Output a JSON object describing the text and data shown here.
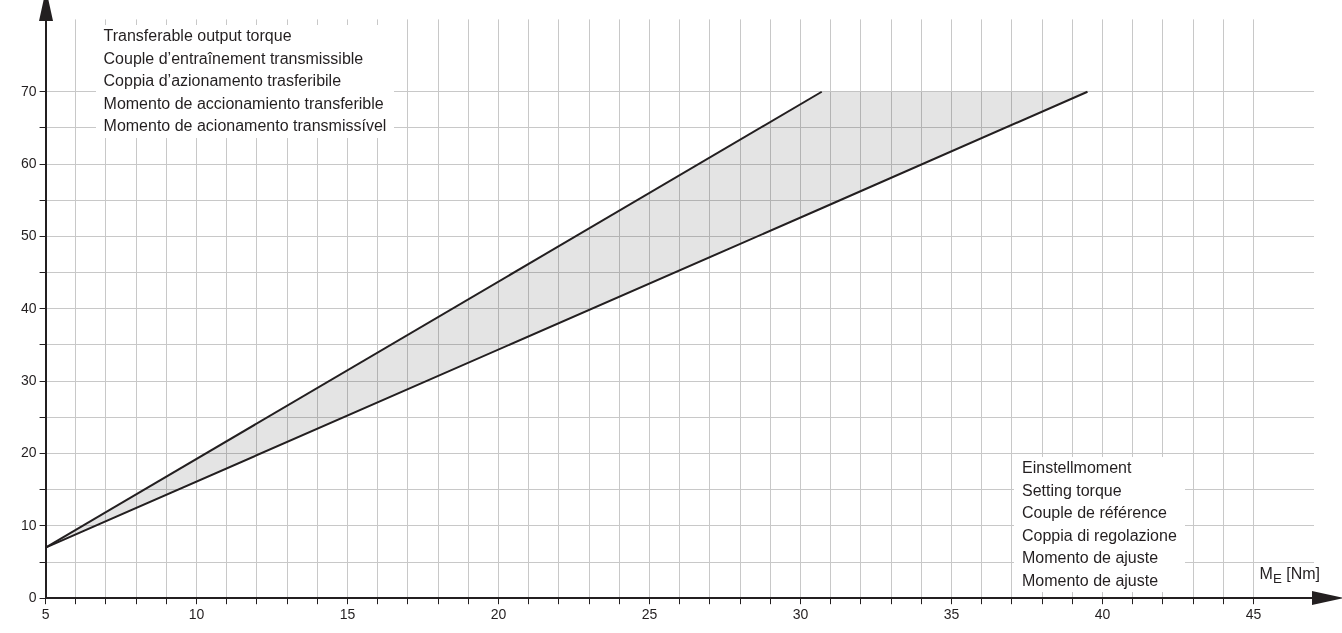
{
  "chart_data": {
    "type": "line",
    "ylabel": "Transferable output torque\nCouple d’entraînement transmissible\nCoppia d’azionamento trasferibile\nMomento de accionamiento transferible\nMomento de acionamento transmissível",
    "xlabel": "M$_{E}$ [Nm]",
    "annotations": [
      "Einstellmoment\nSetting torque\nCouple de référence\nCoppia di regolazione\nMomento de ajuste\nMomento de ajuste"
    ],
    "series": [
      {
        "color": "#231f20",
        "x": [
          5,
          30.7
        ],
        "values": [
          7,
          70
        ]
      },
      {
        "color": "#231f20",
        "x": [
          5,
          30.7,
          39.5
        ],
        "values": [
          7,
          53.9,
          70
        ],
        "lower": [
          7,
          53.9,
          70
        ],
        "upper": [
          7,
          70,
          70
        ]
      }
    ],
    "xlim": [
      5,
      47
    ],
    "ylim": [
      0,
      80
    ],
    "xticks": [
      5,
      {
        "value": 6,
        "label": null
      },
      {
        "value": 7,
        "label": null
      },
      {
        "value": 8,
        "label": null
      },
      {
        "value": 9,
        "label": null
      },
      10,
      {
        "value": 11,
        "label": null
      },
      {
        "value": 12,
        "label": null
      },
      {
        "value": 13,
        "label": null
      },
      {
        "value": 14,
        "label": null
      },
      15,
      {
        "value": 16,
        "label": null
      },
      {
        "value": 17,
        "label": null
      },
      {
        "value": 18,
        "label": null
      },
      {
        "value": 19,
        "label": null
      },
      20,
      {
        "value": 21,
        "label": null
      },
      {
        "value": 22,
        "label": null
      },
      {
        "value": 23,
        "label": null
      },
      {
        "value": 24,
        "label": null
      },
      25,
      {
        "value": 26,
        "label": null
      },
      {
        "value": 27,
        "label": null
      },
      {
        "value": 28,
        "label": null
      },
      {
        "value": 29,
        "label": null
      },
      30,
      {
        "value": 31,
        "label": null
      },
      {
        "value": 32,
        "label": null
      },
      {
        "value": 33,
        "label": null
      },
      {
        "value": 34,
        "label": null
      },
      35,
      {
        "value": 36,
        "label": null
      },
      {
        "value": 37,
        "label": null
      },
      {
        "value": 38,
        "label": null
      },
      {
        "value": 39,
        "label": null
      },
      40,
      {
        "value": 41,
        "label": null
      },
      {
        "value": 42,
        "label": null
      },
      {
        "value": 43,
        "label": null
      },
      {
        "value": 44,
        "label": null
      },
      45
    ],
    "yticks": [
      0,
      {
        "value": 5,
        "label": null
      },
      10,
      {
        "value": 15,
        "label": null
      },
      20,
      {
        "value": 25,
        "label": null
      },
      30,
      {
        "value": 35,
        "label": null
      },
      40,
      {
        "value": 45,
        "label": null
      },
      50,
      {
        "value": 55,
        "label": null
      },
      60,
      {
        "value": 65,
        "label": null
      },
      70
    ],
    "grid": true,
    "marker": "none",
    "line_style": "solid"
  }
}
